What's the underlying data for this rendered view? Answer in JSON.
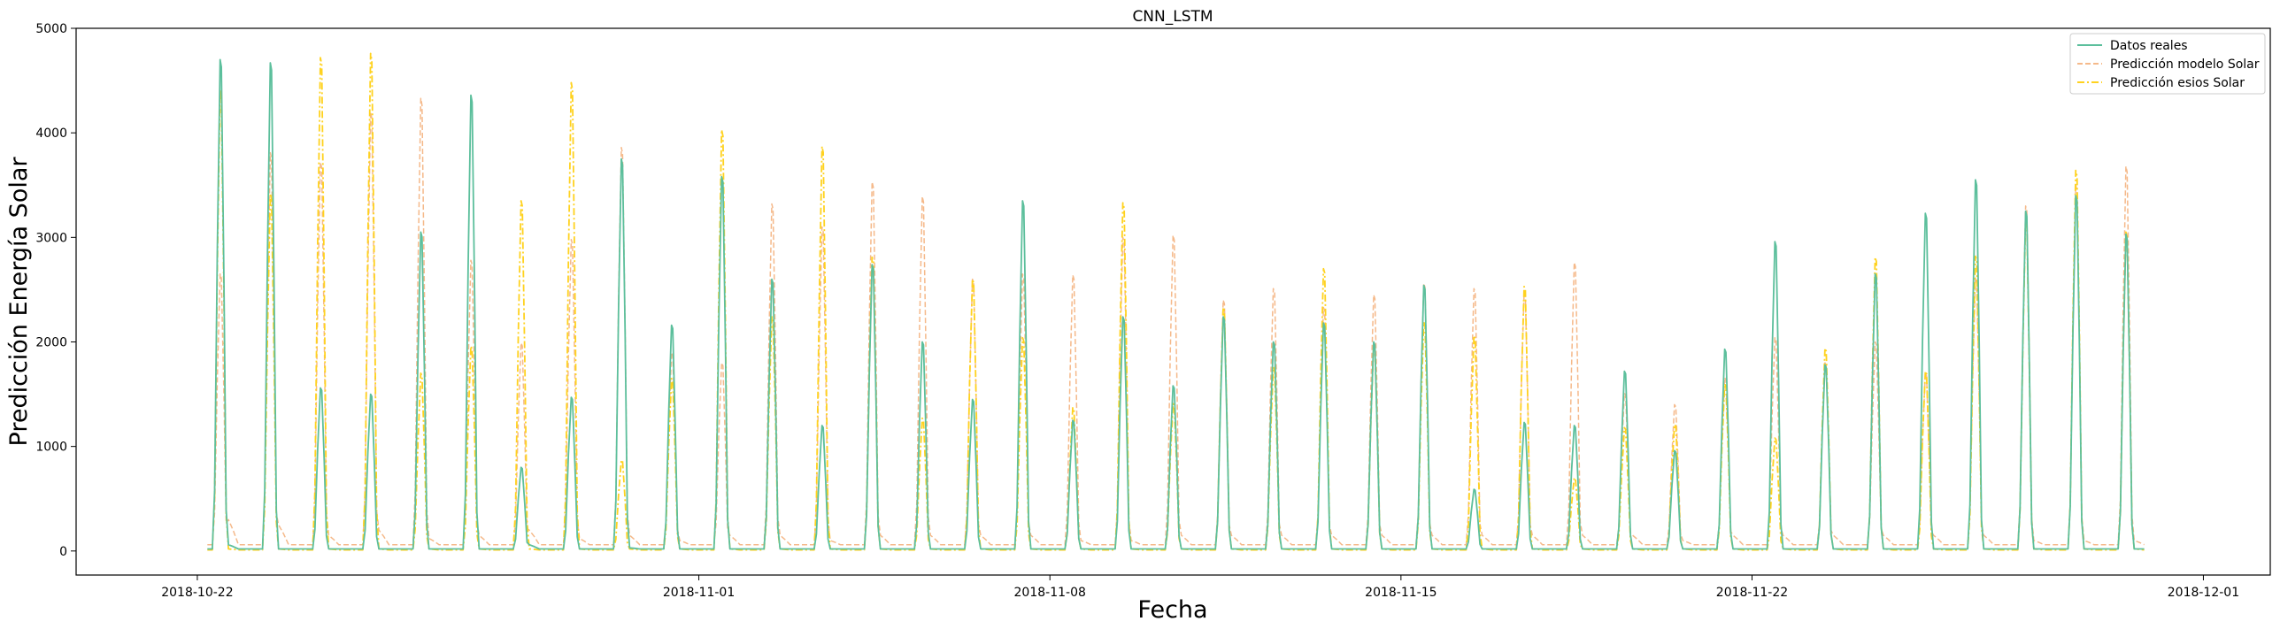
{
  "chart_data": {
    "type": "line",
    "title": "CNN_LSTM",
    "xlabel": "Fecha",
    "ylabel": "Predicción Energía Solar",
    "xlim": [
      "2018-10-19T14:00",
      "2018-12-02T08:00"
    ],
    "ylim": [
      -230,
      5000
    ],
    "x_ticks": [
      "2018-10-22",
      "2018-11-01",
      "2018-11-08",
      "2018-11-15",
      "2018-11-22",
      "2018-12-01"
    ],
    "y_ticks": [
      0,
      1000,
      2000,
      3000,
      4000,
      5000
    ],
    "grid": false,
    "legend_position": "top-right",
    "series": [
      {
        "name": "Datos reales",
        "color": "#5cbf9c",
        "style": "solid",
        "base": 20,
        "night": [
          60,
          20,
          20,
          20,
          20,
          20,
          60,
          20,
          30,
          20,
          20,
          20,
          20,
          20,
          20,
          20,
          20,
          20,
          20,
          20,
          20,
          20,
          20,
          20,
          20,
          20,
          20,
          20,
          20,
          20,
          20,
          20,
          20,
          20,
          20,
          20,
          20,
          20,
          20,
          20
        ],
        "peaks": [
          4700,
          4670,
          1560,
          1500,
          3050,
          4360,
          800,
          1470,
          3750,
          2160,
          3580,
          2600,
          1200,
          2740,
          2000,
          1450,
          3350,
          1250,
          2240,
          1580,
          2240,
          2000,
          2180,
          2000,
          2540,
          590,
          1230,
          1200,
          1720,
          960,
          1930,
          2960,
          1780,
          2650,
          3230,
          3550,
          3250,
          3400,
          3030
        ]
      },
      {
        "name": "Predicción modelo Solar",
        "color": "#f5b98a",
        "style": "dashed",
        "base": 60,
        "night": [
          300,
          250,
          150,
          200,
          120,
          150,
          200,
          120,
          150,
          100,
          150,
          150,
          100,
          150,
          150,
          150,
          150,
          100,
          100,
          150,
          150,
          150,
          150,
          150,
          150,
          150,
          150,
          150,
          150,
          100,
          150,
          150,
          150,
          150,
          150,
          150,
          100,
          100,
          100,
          100
        ],
        "peaks": [
          2650,
          3810,
          3720,
          4200,
          4330,
          2780,
          1990,
          2980,
          3860,
          1900,
          1800,
          3320,
          3100,
          3530,
          3390,
          2600,
          2650,
          2640,
          3000,
          3020,
          2400,
          2510,
          2330,
          2450,
          2560,
          2510,
          2480,
          2760,
          1510,
          1400,
          1660,
          2040,
          1800,
          2000,
          1700,
          2620,
          3300,
          3500,
          3680
        ]
      },
      {
        "name": "Predicción esios Solar",
        "color": "#ffd21f",
        "style": "dashdot",
        "base": 10,
        "night": [
          20,
          20,
          20,
          20,
          20,
          20,
          20,
          20,
          20,
          20,
          20,
          20,
          20,
          20,
          20,
          20,
          20,
          20,
          20,
          20,
          20,
          20,
          20,
          20,
          20,
          20,
          20,
          20,
          20,
          20,
          20,
          20,
          20,
          20,
          20,
          20,
          20,
          20,
          20,
          20
        ],
        "peaks": [
          4410,
          3420,
          4720,
          4760,
          1700,
          1960,
          3350,
          4480,
          870,
          1650,
          4030,
          2240,
          3870,
          2810,
          1270,
          2600,
          2040,
          1370,
          3330,
          1410,
          2330,
          1760,
          2700,
          1980,
          2190,
          2060,
          2530,
          700,
          1180,
          1210,
          1600,
          1080,
          1940,
          2810,
          1720,
          2820,
          3180,
          3640,
          3050
        ]
      }
    ]
  }
}
